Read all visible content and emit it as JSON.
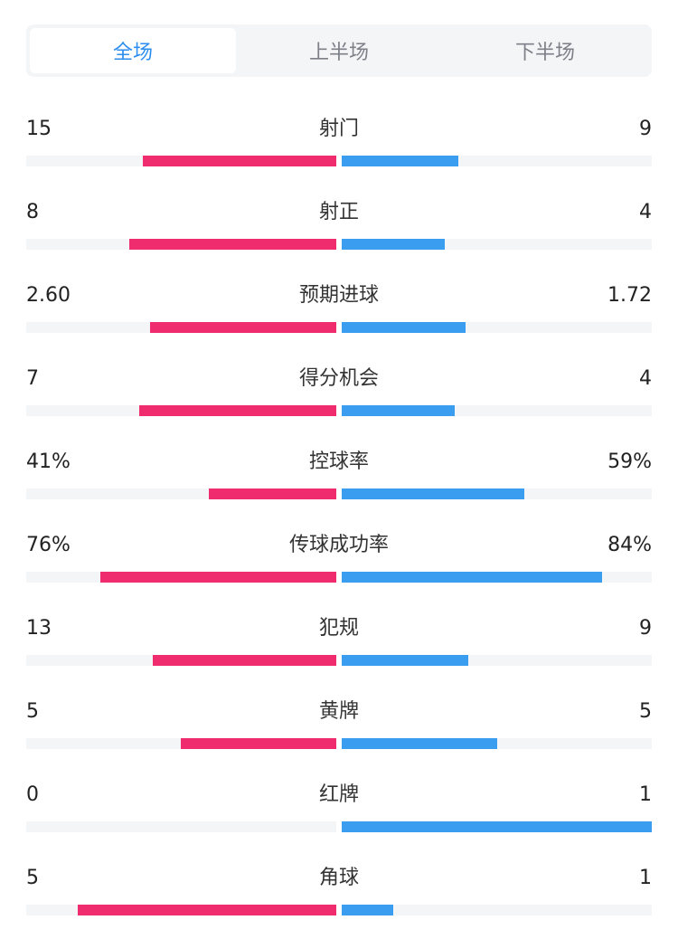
{
  "tabs": [
    {
      "label": "全场",
      "active": true
    },
    {
      "label": "上半场",
      "active": false
    },
    {
      "label": "下半场",
      "active": false
    }
  ],
  "colors": {
    "home": "#ef2d6e",
    "away": "#3a9df0",
    "track": "#f4f5f7",
    "accent": "#2d8ef0"
  },
  "stats": [
    {
      "label": "射门",
      "home": "15",
      "away": "9",
      "home_ratio": 0.625,
      "away_ratio": 0.375
    },
    {
      "label": "射正",
      "home": "8",
      "away": "4",
      "home_ratio": 0.667,
      "away_ratio": 0.333
    },
    {
      "label": "预期进球",
      "home": "2.60",
      "away": "1.72",
      "home_ratio": 0.602,
      "away_ratio": 0.398
    },
    {
      "label": "得分机会",
      "home": "7",
      "away": "4",
      "home_ratio": 0.636,
      "away_ratio": 0.364
    },
    {
      "label": "控球率",
      "home": "41%",
      "away": "59%",
      "home_ratio": 0.41,
      "away_ratio": 0.59
    },
    {
      "label": "传球成功率",
      "home": "76%",
      "away": "84%",
      "home_ratio": 0.76,
      "away_ratio": 0.84
    },
    {
      "label": "犯规",
      "home": "13",
      "away": "9",
      "home_ratio": 0.591,
      "away_ratio": 0.409
    },
    {
      "label": "黄牌",
      "home": "5",
      "away": "5",
      "home_ratio": 0.5,
      "away_ratio": 0.5
    },
    {
      "label": "红牌",
      "home": "0",
      "away": "1",
      "home_ratio": 0.0,
      "away_ratio": 1.0
    },
    {
      "label": "角球",
      "home": "5",
      "away": "1",
      "home_ratio": 0.833,
      "away_ratio": 0.167
    }
  ]
}
